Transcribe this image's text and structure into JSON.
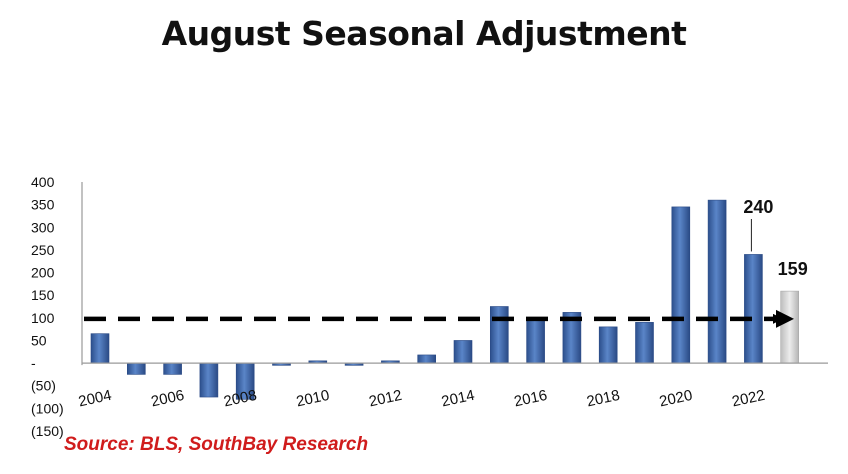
{
  "title": "August Seasonal Adjustment",
  "source": "Source: BLS, SouthBay Research",
  "chart_data": {
    "type": "bar",
    "title": "August Seasonal Adjustment",
    "x": [
      2004,
      2005,
      2006,
      2007,
      2008,
      2009,
      2010,
      2011,
      2012,
      2013,
      2014,
      2015,
      2016,
      2017,
      2018,
      2019,
      2020,
      2021,
      2022,
      2023
    ],
    "values": [
      65,
      -25,
      -25,
      -75,
      -80,
      -5,
      5,
      -5,
      5,
      18,
      50,
      125,
      100,
      112,
      80,
      90,
      345,
      360,
      240,
      159
    ],
    "x_tick_labels": [
      "2004",
      "2006",
      "2008",
      "2010",
      "2012",
      "2014",
      "2016",
      "2018",
      "2020",
      "2022"
    ],
    "y_tick_labels": [
      "400",
      "350",
      "300",
      "250",
      "200",
      "150",
      "100",
      "50",
      "-",
      "(50)",
      "(100)",
      "(150)"
    ],
    "ylim": [
      -150,
      400
    ],
    "reference_line": 100,
    "data_labels": [
      {
        "year": 2022,
        "text": "240"
      },
      {
        "year": 2023,
        "text": "159"
      }
    ],
    "colors": {
      "bar": "#3b64a8",
      "highlight_bar": "#d6d6d6",
      "reference_line": "#000000"
    },
    "grid": false
  }
}
